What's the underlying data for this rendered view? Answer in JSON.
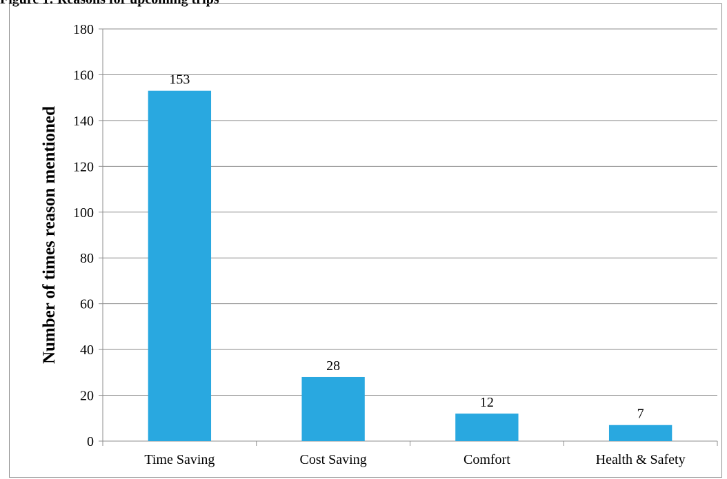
{
  "figure": {
    "caption": "Figure 1: Reasons for upcoming trips"
  },
  "chart_data": {
    "type": "bar",
    "categories": [
      "Time Saving",
      "Cost Saving",
      "Comfort",
      "Health & Safety"
    ],
    "values": [
      153,
      28,
      12,
      7
    ],
    "data_labels": [
      "153",
      "28",
      "12",
      "7"
    ],
    "title": "",
    "xlabel": "",
    "ylabel": "Number of times reason mentioned",
    "ylim": [
      0,
      180
    ],
    "yticks": [
      0,
      20,
      40,
      60,
      80,
      100,
      120,
      140,
      160,
      180
    ],
    "grid": true,
    "legend": "none",
    "bar_color": "#29A8E0",
    "grid_color": "#8c8c8c"
  }
}
